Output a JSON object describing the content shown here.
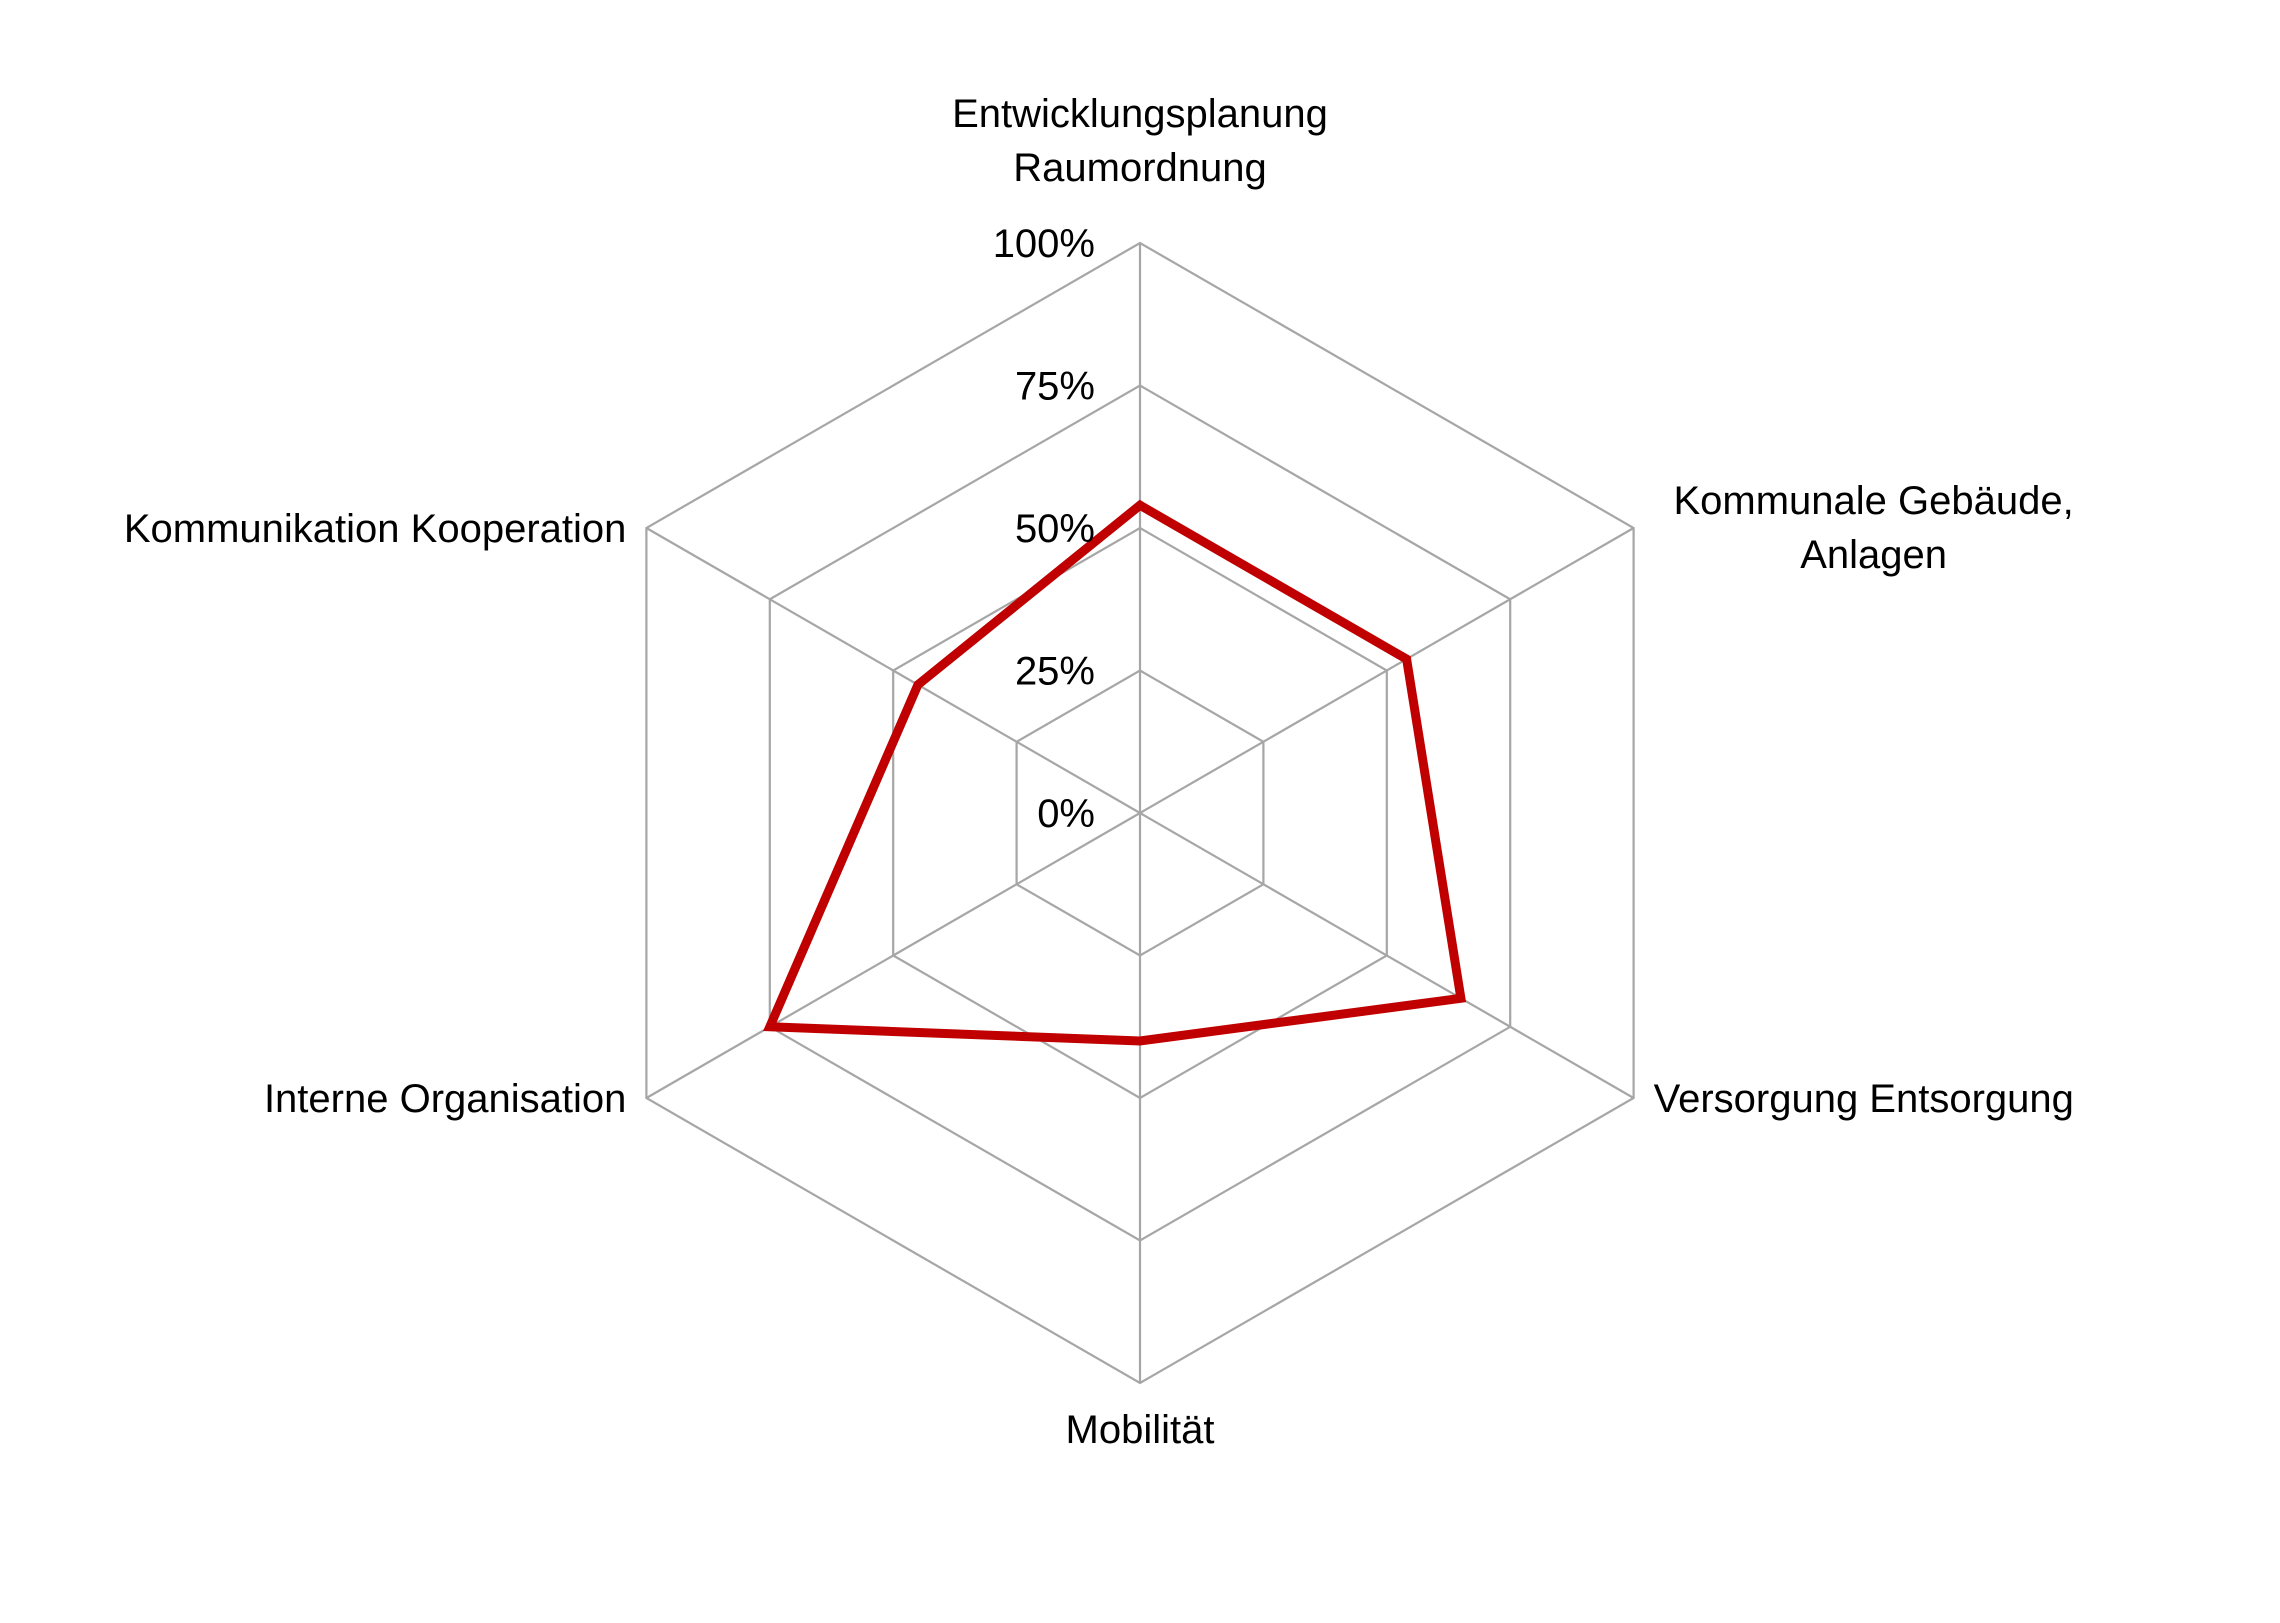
{
  "chart_data": {
    "type": "radar",
    "title": "",
    "categories": [
      [
        "Entwicklungsplanung",
        "Raumordnung"
      ],
      [
        "Kommunale Gebäude,",
        "Anlagen"
      ],
      [
        "Versorgung Entsorgung"
      ],
      [
        "Mobilität"
      ],
      [
        "Interne Organisation"
      ],
      [
        "Kommunikation Kooperation"
      ]
    ],
    "series": [
      {
        "values": [
          54,
          54,
          65,
          40,
          75,
          45
        ],
        "color": "#c00000"
      }
    ],
    "rlim": [
      0,
      100
    ],
    "ticks": [
      "0%",
      "25%",
      "50%",
      "75%",
      "100%"
    ],
    "grid": true,
    "legend": "none"
  }
}
